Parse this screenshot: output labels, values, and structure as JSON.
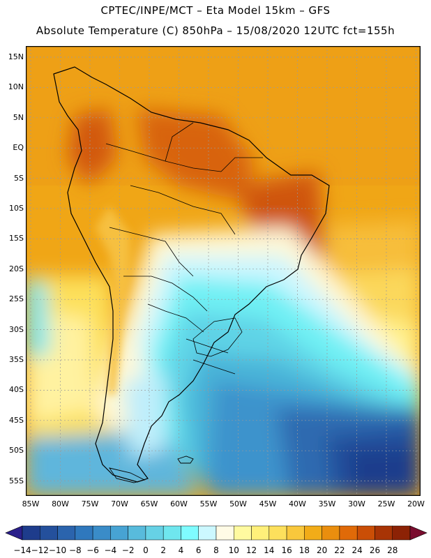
{
  "header": {
    "line1": "CPTEC/INPE/MCT –  Eta Model 15km – GFS",
    "line2": "Absolute Temperature (C) 850hPa – 15/08/2020 12UTC fct=155h"
  },
  "axes": {
    "lat_labels": [
      "15N",
      "10N",
      "5N",
      "EQ",
      "5S",
      "10S",
      "15S",
      "20S",
      "25S",
      "30S",
      "35S",
      "40S",
      "45S",
      "50S",
      "55S"
    ],
    "lon_labels": [
      "85W",
      "80W",
      "75W",
      "70W",
      "65W",
      "60W",
      "55W",
      "50W",
      "45W",
      "40W",
      "35W",
      "30W",
      "25W",
      "20W"
    ]
  },
  "colorbar": {
    "labels": [
      "-14",
      "-12",
      "-10",
      "-8",
      "-6",
      "-4",
      "-2",
      "0",
      "2",
      "4",
      "6",
      "8",
      "10",
      "12",
      "14",
      "16",
      "18",
      "20",
      "22",
      "24",
      "26",
      "28"
    ],
    "colors": [
      "#1e3c8c",
      "#24509c",
      "#2b64ad",
      "#2f78bd",
      "#3a8cc8",
      "#47a3d3",
      "#58bbdc",
      "#66d1e5",
      "#6fe6ee",
      "#7ffcff",
      "#ccf8ff",
      "#fffbe6",
      "#fffaa0",
      "#fff07a",
      "#fde05c",
      "#f9c83c",
      "#f2ac18",
      "#ea8e0e",
      "#e06a08",
      "#ca4e06",
      "#a83405",
      "#8c2205"
    ],
    "over_color": "#7a0c2e",
    "under_color": "#2a1f8a"
  },
  "colors": {
    "coast": "#000000",
    "grid": "#9a9a9a"
  }
}
